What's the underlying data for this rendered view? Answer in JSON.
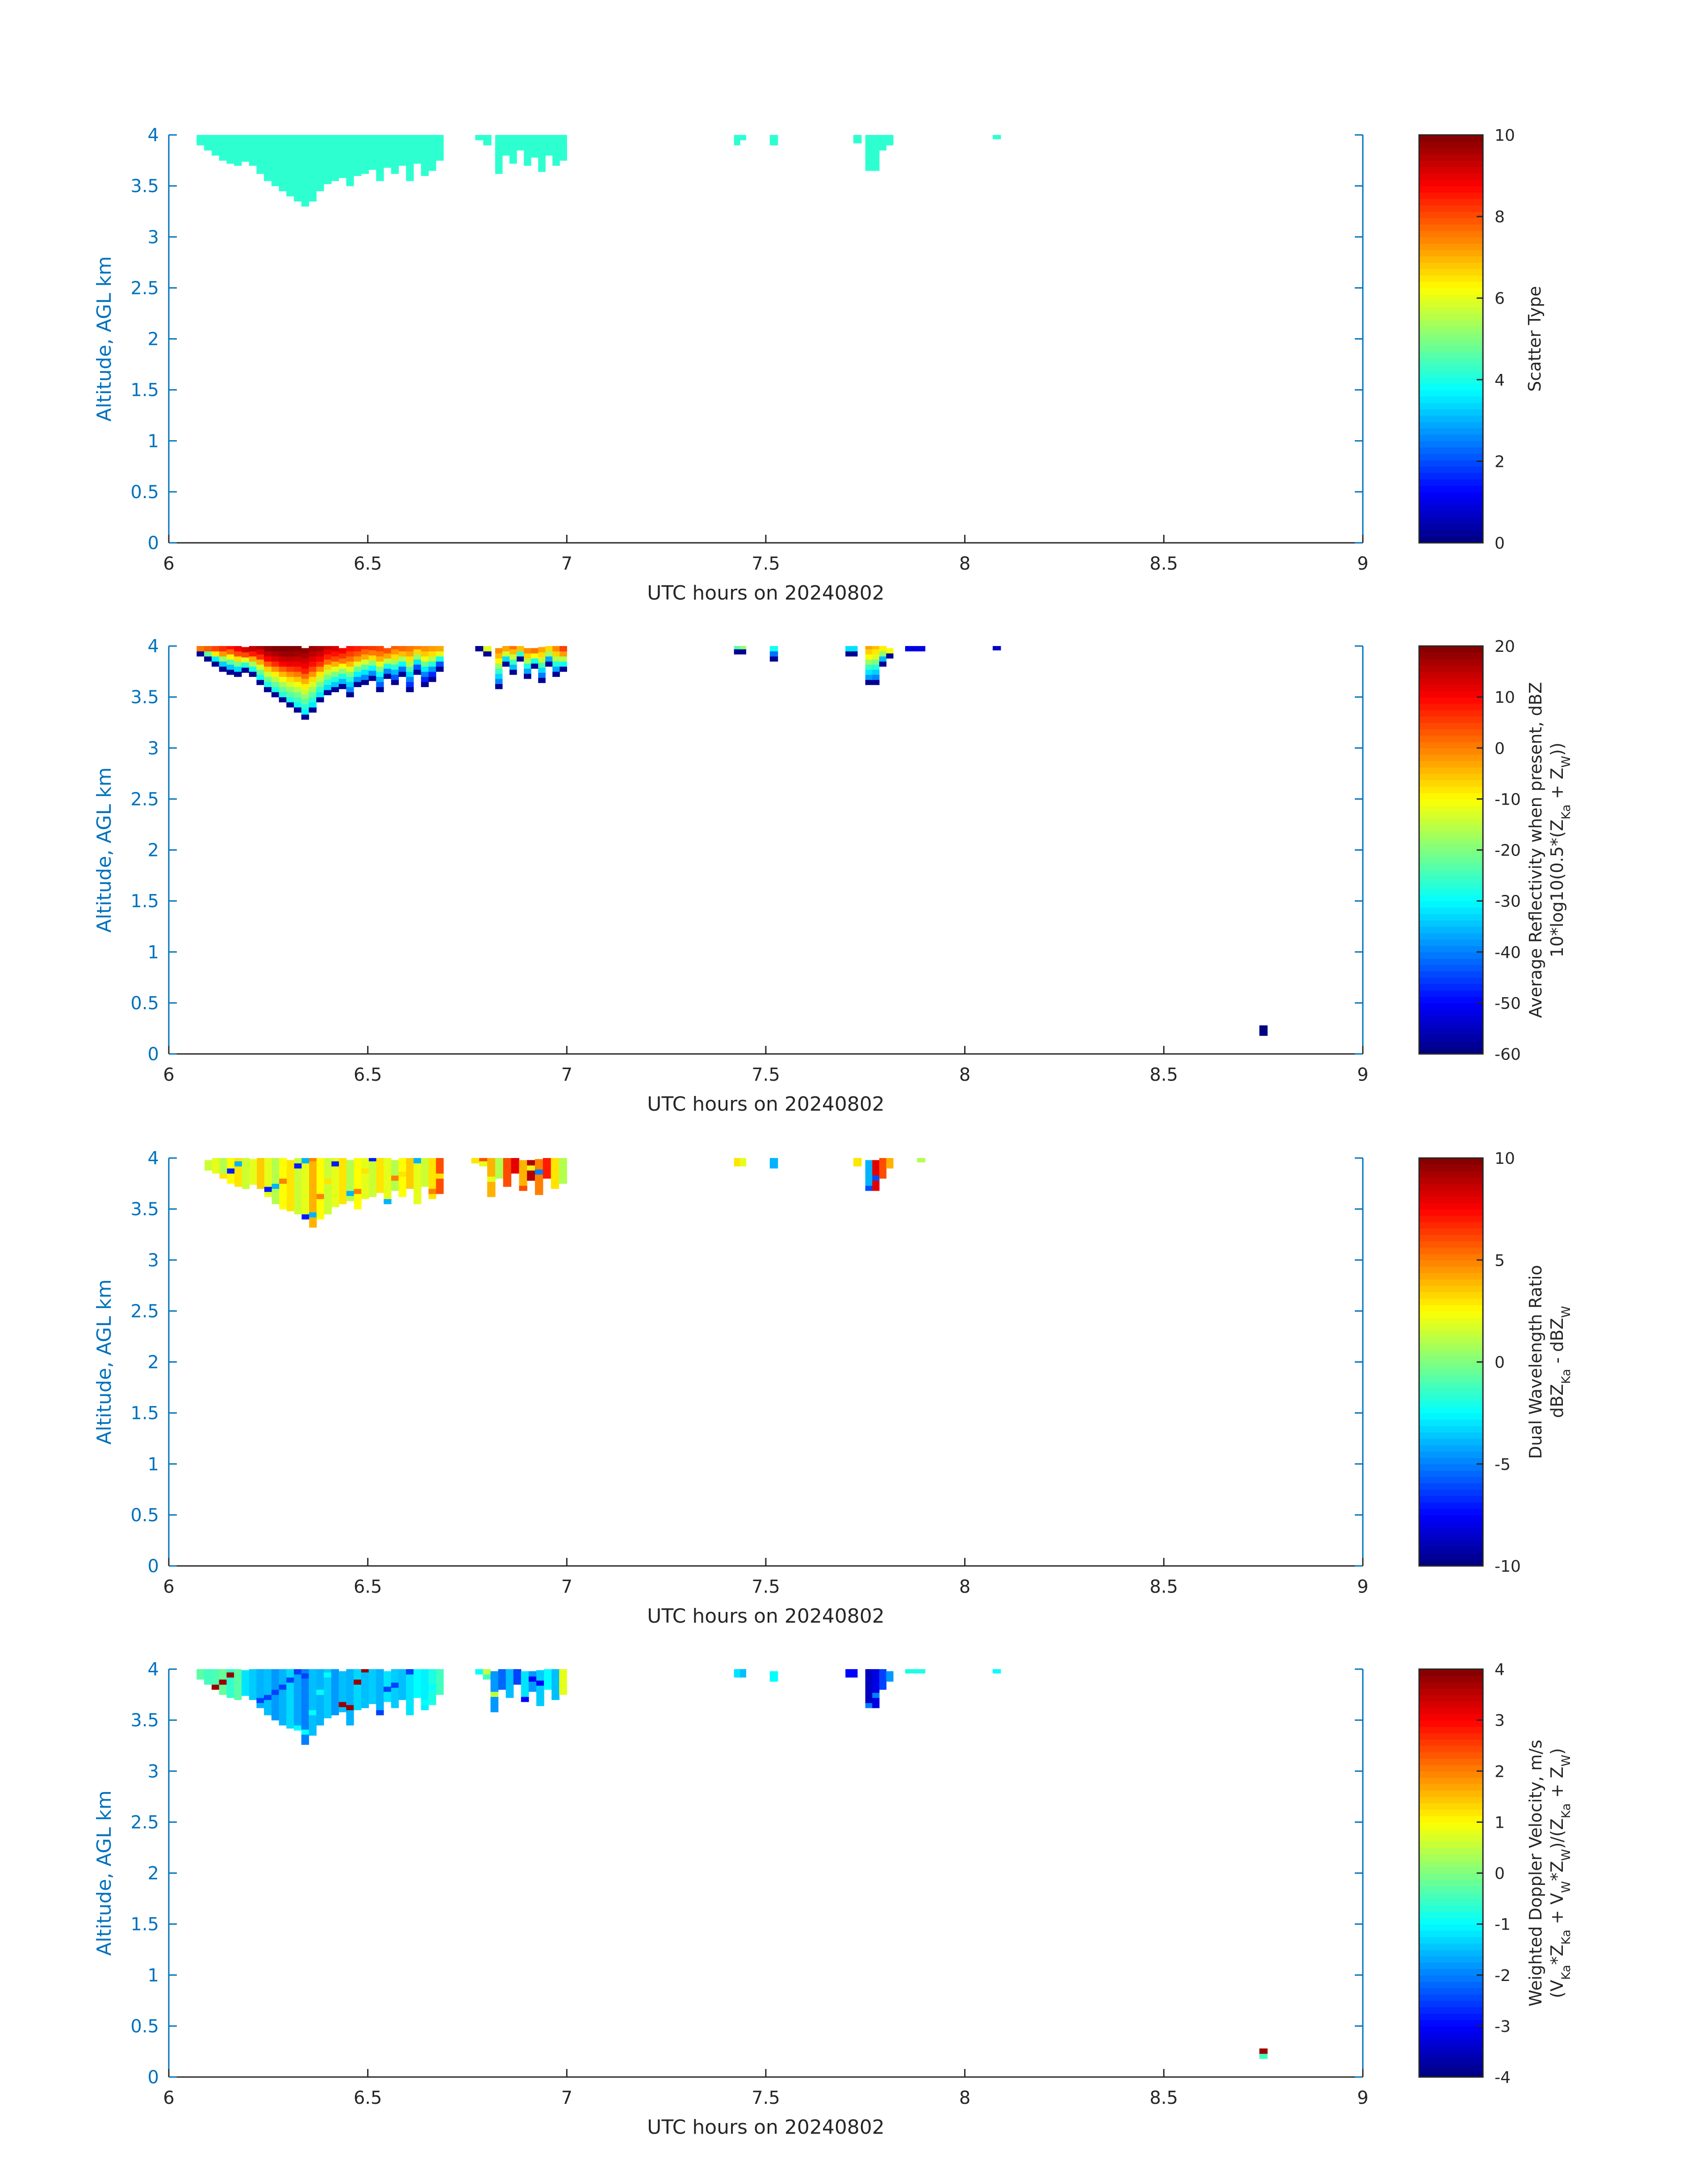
{
  "figure": {
    "background": "#ffffff",
    "axis_color": "#0072bd"
  },
  "chart_data": [
    {
      "type": "heatmap",
      "xlabel": "UTC hours on 20240802",
      "ylabel": "Altitude, AGL km",
      "xlim": [
        6,
        9
      ],
      "ylim": [
        0,
        4
      ],
      "xticks": [
        "6",
        "6.5",
        "7",
        "7.5",
        "8",
        "8.5",
        "9"
      ],
      "yticks": [
        "0",
        "0.5",
        "1",
        "1.5",
        "2",
        "2.5",
        "3",
        "3.5",
        "4"
      ],
      "colorbar": {
        "label_lines": [
          "Scatter Type"
        ],
        "lim": [
          0,
          10
        ],
        "ticks": [
          "0",
          "2",
          "4",
          "6",
          "8",
          "10"
        ],
        "colormap": "jet"
      },
      "segments": [
        {
          "x0": 6.07,
          "x1": 6.69,
          "bottom": [
            3.9,
            3.85,
            3.8,
            3.75,
            3.72,
            3.7,
            3.74,
            3.7,
            3.62,
            3.55,
            3.5,
            3.45,
            3.4,
            3.35,
            3.3,
            3.35,
            3.45,
            3.52,
            3.55,
            3.58,
            3.5,
            3.6,
            3.62,
            3.66,
            3.55,
            3.68,
            3.62,
            3.7,
            3.55,
            3.72,
            3.6,
            3.65,
            3.75
          ],
          "values": [
            4.2
          ]
        },
        {
          "x0": 6.77,
          "x1": 6.81,
          "bottom": [
            3.95,
            3.9
          ],
          "values": [
            4.2
          ]
        },
        {
          "x0": 6.82,
          "x1": 7.0,
          "bottom": [
            3.62,
            3.8,
            3.72,
            3.85,
            3.7,
            3.78,
            3.64,
            3.8,
            3.7,
            3.75
          ],
          "values": [
            4.2
          ]
        },
        {
          "x0": 7.42,
          "x1": 7.45,
          "bottom": [
            3.9,
            3.95
          ],
          "values": [
            4.2
          ]
        },
        {
          "x0": 7.51,
          "x1": 7.53,
          "bottom": [
            3.9
          ],
          "values": [
            4.2
          ]
        },
        {
          "x0": 7.72,
          "x1": 7.74,
          "bottom": [
            3.92
          ],
          "values": [
            4.2
          ]
        },
        {
          "x0": 7.75,
          "x1": 7.82,
          "bottom": [
            3.65,
            3.65,
            3.85,
            3.9
          ],
          "values": [
            4.2
          ]
        },
        {
          "x0": 8.07,
          "x1": 8.09,
          "bottom": [
            3.96
          ],
          "values": [
            4.2
          ]
        }
      ]
    },
    {
      "type": "heatmap",
      "xlabel": "UTC hours on 20240802",
      "ylabel": "Altitude, AGL km",
      "xlim": [
        6,
        9
      ],
      "ylim": [
        0,
        4
      ],
      "xticks": [
        "6",
        "6.5",
        "7",
        "7.5",
        "8",
        "8.5",
        "9"
      ],
      "yticks": [
        "0",
        "0.5",
        "1",
        "1.5",
        "2",
        "2.5",
        "3",
        "3.5",
        "4"
      ],
      "colorbar": {
        "label_lines": [
          "Average Reflectivity when present, dBZ",
          "10*log10(0.5*(Z_Ka + Z_W))"
        ],
        "lim": [
          -60,
          20
        ],
        "ticks": [
          "-60",
          "-50",
          "-40",
          "-30",
          "-20",
          "-10",
          "0",
          "10",
          "20"
        ],
        "colormap": "jet"
      },
      "segments": [
        {
          "x0": 6.07,
          "x1": 6.69,
          "bottom": [
            3.9,
            3.85,
            3.8,
            3.75,
            3.72,
            3.7,
            3.74,
            3.7,
            3.62,
            3.55,
            3.5,
            3.45,
            3.4,
            3.35,
            3.28,
            3.35,
            3.45,
            3.52,
            3.55,
            3.58,
            3.5,
            3.6,
            3.62,
            3.66,
            3.55,
            3.68,
            3.62,
            3.7,
            3.55,
            3.72,
            3.6,
            3.65,
            3.75
          ],
          "values": [
            -22,
            -20,
            -18,
            -16,
            -14,
            -12,
            -10,
            -8,
            -6,
            -4,
            -3,
            -2,
            -2,
            -3,
            -4,
            -5,
            -6,
            -8,
            -10,
            -12,
            -14,
            -15,
            -16,
            -17,
            -18,
            -19,
            -20,
            -21,
            -22,
            -23,
            -24,
            -25,
            -26
          ],
          "gradient": 60
        },
        {
          "x0": 6.77,
          "x1": 6.81,
          "bottom": [
            3.95,
            3.9
          ],
          "values": [
            -25,
            -28
          ],
          "gradient": 40
        },
        {
          "x0": 6.82,
          "x1": 7.0,
          "bottom": [
            3.58,
            3.8,
            3.72,
            3.85,
            3.68,
            3.78,
            3.64,
            3.8,
            3.7,
            3.75
          ],
          "values": [
            -20,
            -22,
            -18,
            -24,
            -20,
            -18,
            -22,
            -26,
            -20,
            -14
          ],
          "gradient": 50
        },
        {
          "x0": 7.42,
          "x1": 7.45,
          "bottom": [
            3.92,
            3.92
          ],
          "values": [
            -35,
            -30
          ],
          "gradient": 30
        },
        {
          "x0": 7.51,
          "x1": 7.53,
          "bottom": [
            3.85
          ],
          "values": [
            -40
          ],
          "gradient": 30
        },
        {
          "x0": 7.7,
          "x1": 7.73,
          "bottom": [
            3.9
          ],
          "values": [
            -40
          ],
          "gradient": 20
        },
        {
          "x0": 7.75,
          "x1": 7.82,
          "bottom": [
            3.62,
            3.62,
            3.8,
            3.88
          ],
          "values": [
            -20,
            -22,
            -26,
            -28
          ],
          "gradient": 45
        },
        {
          "x0": 7.85,
          "x1": 7.9,
          "bottom": [
            3.95
          ],
          "values": [
            -52
          ],
          "gradient": 0
        },
        {
          "x0": 8.07,
          "x1": 8.09,
          "bottom": [
            3.96
          ],
          "values": [
            -55
          ],
          "gradient": 0
        },
        {
          "x0": 8.74,
          "x1": 8.76,
          "bottom": [
            0.18
          ],
          "top": 0.28,
          "values": [
            -60
          ],
          "gradient": 0
        }
      ]
    },
    {
      "type": "heatmap",
      "xlabel": "UTC hours on 20240802",
      "ylabel": "Altitude, AGL km",
      "xlim": [
        6,
        9
      ],
      "ylim": [
        0,
        4
      ],
      "xticks": [
        "6",
        "6.5",
        "7",
        "7.5",
        "8",
        "8.5",
        "9"
      ],
      "yticks": [
        "0",
        "0.5",
        "1",
        "1.5",
        "2",
        "2.5",
        "3",
        "3.5",
        "4"
      ],
      "colorbar": {
        "label_lines": [
          "Dual Wavelength Ratio",
          "dBZ_Ka - dBZ_W"
        ],
        "lim": [
          -10,
          10
        ],
        "ticks": [
          "-10",
          "-5",
          "0",
          "5",
          "10"
        ],
        "colormap": "jet"
      },
      "segments": [
        {
          "x0": 6.09,
          "x1": 6.69,
          "bottom": [
            3.88,
            3.85,
            3.8,
            3.75,
            3.72,
            3.7,
            3.74,
            3.7,
            3.62,
            3.55,
            3.5,
            3.48,
            3.45,
            3.4,
            3.32,
            3.4,
            3.45,
            3.52,
            3.55,
            3.58,
            3.5,
            3.6,
            3.62,
            3.66,
            3.55,
            3.68,
            3.62,
            3.7,
            3.55,
            3.72,
            3.6,
            3.65
          ],
          "values": [
            1.5,
            2.0,
            1.0,
            2.5,
            3.0,
            1.5,
            2.0,
            3.5,
            2.0,
            1.0,
            2.5,
            3.0,
            1.5,
            2.0,
            4.0,
            2.5,
            1.5,
            2.0,
            3.0,
            1.0,
            2.5,
            2.0,
            1.5,
            3.0,
            2.0,
            1.0,
            2.5,
            3.5,
            2.0,
            1.5,
            3.0,
            6.0
          ],
          "scatter": [
            -4,
            -7,
            3,
            5
          ]
        },
        {
          "x0": 6.76,
          "x1": 7.0,
          "bottom": [
            3.95,
            3.92,
            3.62,
            3.8,
            3.72,
            3.85,
            3.68,
            3.78,
            3.64,
            3.8,
            3.7,
            3.75
          ],
          "values": [
            3.0,
            2.0,
            4.0,
            1.0,
            6.0,
            8.0,
            4.0,
            9.0,
            5.0,
            7.0,
            3.0,
            1.0
          ],
          "scatter": [
            -5,
            2,
            6,
            8
          ]
        },
        {
          "x0": 7.42,
          "x1": 7.45,
          "bottom": [
            3.92,
            3.92
          ],
          "values": [
            3.0,
            2.0
          ],
          "scatter": [
            0
          ]
        },
        {
          "x0": 7.51,
          "x1": 7.53,
          "bottom": [
            3.9
          ],
          "values": [
            -4.0
          ],
          "scatter": [
            0
          ]
        },
        {
          "x0": 7.72,
          "x1": 7.74,
          "bottom": [
            3.92
          ],
          "values": [
            3.0
          ],
          "scatter": [
            0
          ]
        },
        {
          "x0": 7.75,
          "x1": 7.82,
          "bottom": [
            3.68,
            3.68,
            3.8,
            3.9
          ],
          "values": [
            -4.0,
            8.0,
            6.0,
            4.0
          ],
          "scatter": [
            -6,
            2,
            7
          ]
        },
        {
          "x0": 7.88,
          "x1": 7.9,
          "bottom": [
            3.96
          ],
          "values": [
            1.0
          ],
          "scatter": [
            0
          ]
        }
      ]
    },
    {
      "type": "heatmap",
      "xlabel": "UTC hours on 20240802",
      "ylabel": "Altitude, AGL km",
      "xlim": [
        6,
        9
      ],
      "ylim": [
        0,
        4
      ],
      "xticks": [
        "6",
        "6.5",
        "7",
        "7.5",
        "8",
        "8.5",
        "9"
      ],
      "yticks": [
        "0",
        "0.5",
        "1",
        "1.5",
        "2",
        "2.5",
        "3",
        "3.5",
        "4"
      ],
      "colorbar": {
        "label_lines": [
          "Weighted Doppler Velocity, m/s",
          "(V_Ka*Z_Ka + V_W*Z_W)/(Z_Ka + Z_W)"
        ],
        "lim": [
          -4,
          4
        ],
        "ticks": [
          "-4",
          "-3",
          "-2",
          "-1",
          "0",
          "1",
          "2",
          "3",
          "4"
        ],
        "colormap": "jet"
      },
      "segments": [
        {
          "x0": 6.07,
          "x1": 6.69,
          "bottom": [
            3.9,
            3.85,
            3.8,
            3.75,
            3.72,
            3.7,
            3.74,
            3.7,
            3.62,
            3.55,
            3.5,
            3.45,
            3.42,
            3.4,
            3.26,
            3.35,
            3.45,
            3.52,
            3.55,
            3.58,
            3.45,
            3.6,
            3.62,
            3.66,
            3.55,
            3.68,
            3.62,
            3.7,
            3.55,
            3.72,
            3.6,
            3.65,
            3.75
          ],
          "values": [
            -0.3,
            -0.5,
            -0.4,
            -0.2,
            -0.6,
            -0.3,
            -1.2,
            -1.4,
            -1.6,
            -1.5,
            -1.8,
            -1.6,
            -1.3,
            -1.7,
            -2.0,
            -1.5,
            -1.6,
            -1.4,
            -1.8,
            -1.5,
            -1.6,
            -1.3,
            -1.5,
            -1.4,
            -1.6,
            -1.2,
            -1.4,
            -1.5,
            -1.2,
            -1.0,
            -1.1,
            -0.8,
            -0.5
          ],
          "scatter": [
            -2.5,
            -1.0,
            3.8
          ]
        },
        {
          "x0": 6.77,
          "x1": 7.0,
          "bottom": [
            3.95,
            3.9,
            3.58,
            3.8,
            3.72,
            3.85,
            3.68,
            3.78,
            3.64,
            3.8,
            3.7,
            3.75
          ],
          "values": [
            -1.0,
            -0.5,
            -1.8,
            -2.2,
            -1.5,
            -2.5,
            -1.2,
            -1.8,
            -1.4,
            -1.0,
            -1.5,
            0.8
          ],
          "scatter": [
            -3.0,
            -1.0,
            0.5
          ]
        },
        {
          "x0": 7.42,
          "x1": 7.45,
          "bottom": [
            3.92,
            3.92
          ],
          "values": [
            -1.2,
            -1.5
          ],
          "scatter": [
            0
          ]
        },
        {
          "x0": 7.51,
          "x1": 7.53,
          "bottom": [
            3.88
          ],
          "values": [
            -1.0
          ],
          "scatter": [
            0
          ]
        },
        {
          "x0": 7.7,
          "x1": 7.73,
          "bottom": [
            3.92
          ],
          "values": [
            -3.0
          ],
          "scatter": [
            0
          ]
        },
        {
          "x0": 7.75,
          "x1": 7.82,
          "bottom": [
            3.62,
            3.62,
            3.8,
            3.88
          ],
          "values": [
            -3.5,
            -3.2,
            -2.5,
            -1.8
          ],
          "scatter": [
            -2.0
          ]
        },
        {
          "x0": 7.85,
          "x1": 7.9,
          "bottom": [
            3.96
          ],
          "values": [
            -0.8
          ],
          "scatter": [
            0
          ]
        },
        {
          "x0": 8.07,
          "x1": 8.09,
          "bottom": [
            3.96
          ],
          "values": [
            -1.0
          ],
          "scatter": [
            0
          ]
        },
        {
          "x0": 8.74,
          "x1": 8.76,
          "bottom": [
            0.18
          ],
          "top": 0.28,
          "values": [
            3.8
          ],
          "low": -0.5,
          "scatter": [
            0
          ]
        }
      ]
    }
  ]
}
